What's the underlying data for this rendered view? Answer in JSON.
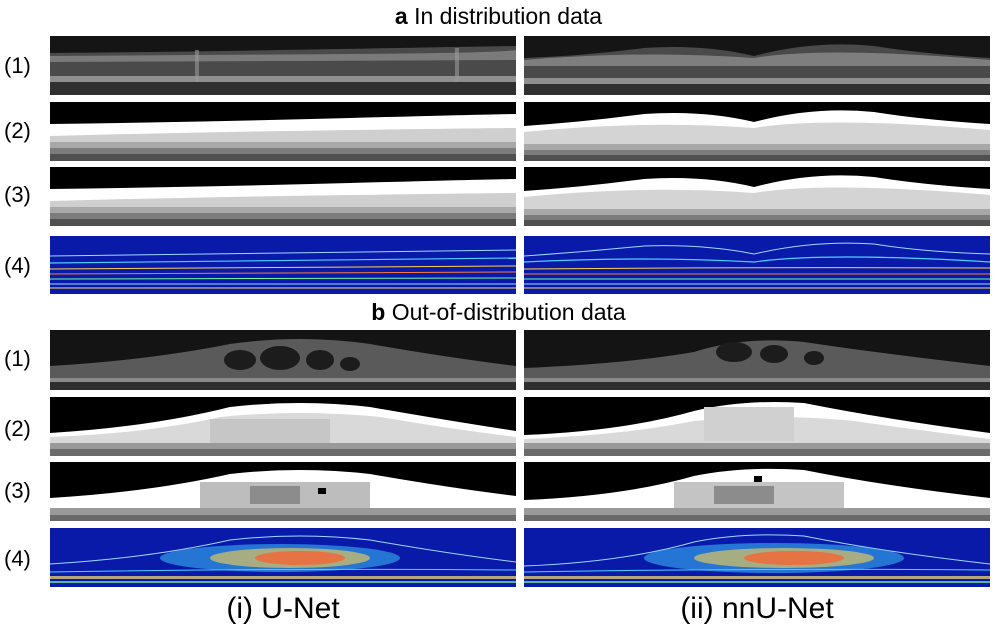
{
  "sections": [
    {
      "letter": "a",
      "title": "In distribution data",
      "rows": [
        "(1)",
        "(2)",
        "(3)",
        "(4)"
      ]
    },
    {
      "letter": "b",
      "title": "Out-of-distribution data",
      "rows": [
        "(1)",
        "(2)",
        "(3)",
        "(4)"
      ]
    }
  ],
  "columns": [
    "(i) U-Net",
    "(ii) nnU-Net"
  ]
}
